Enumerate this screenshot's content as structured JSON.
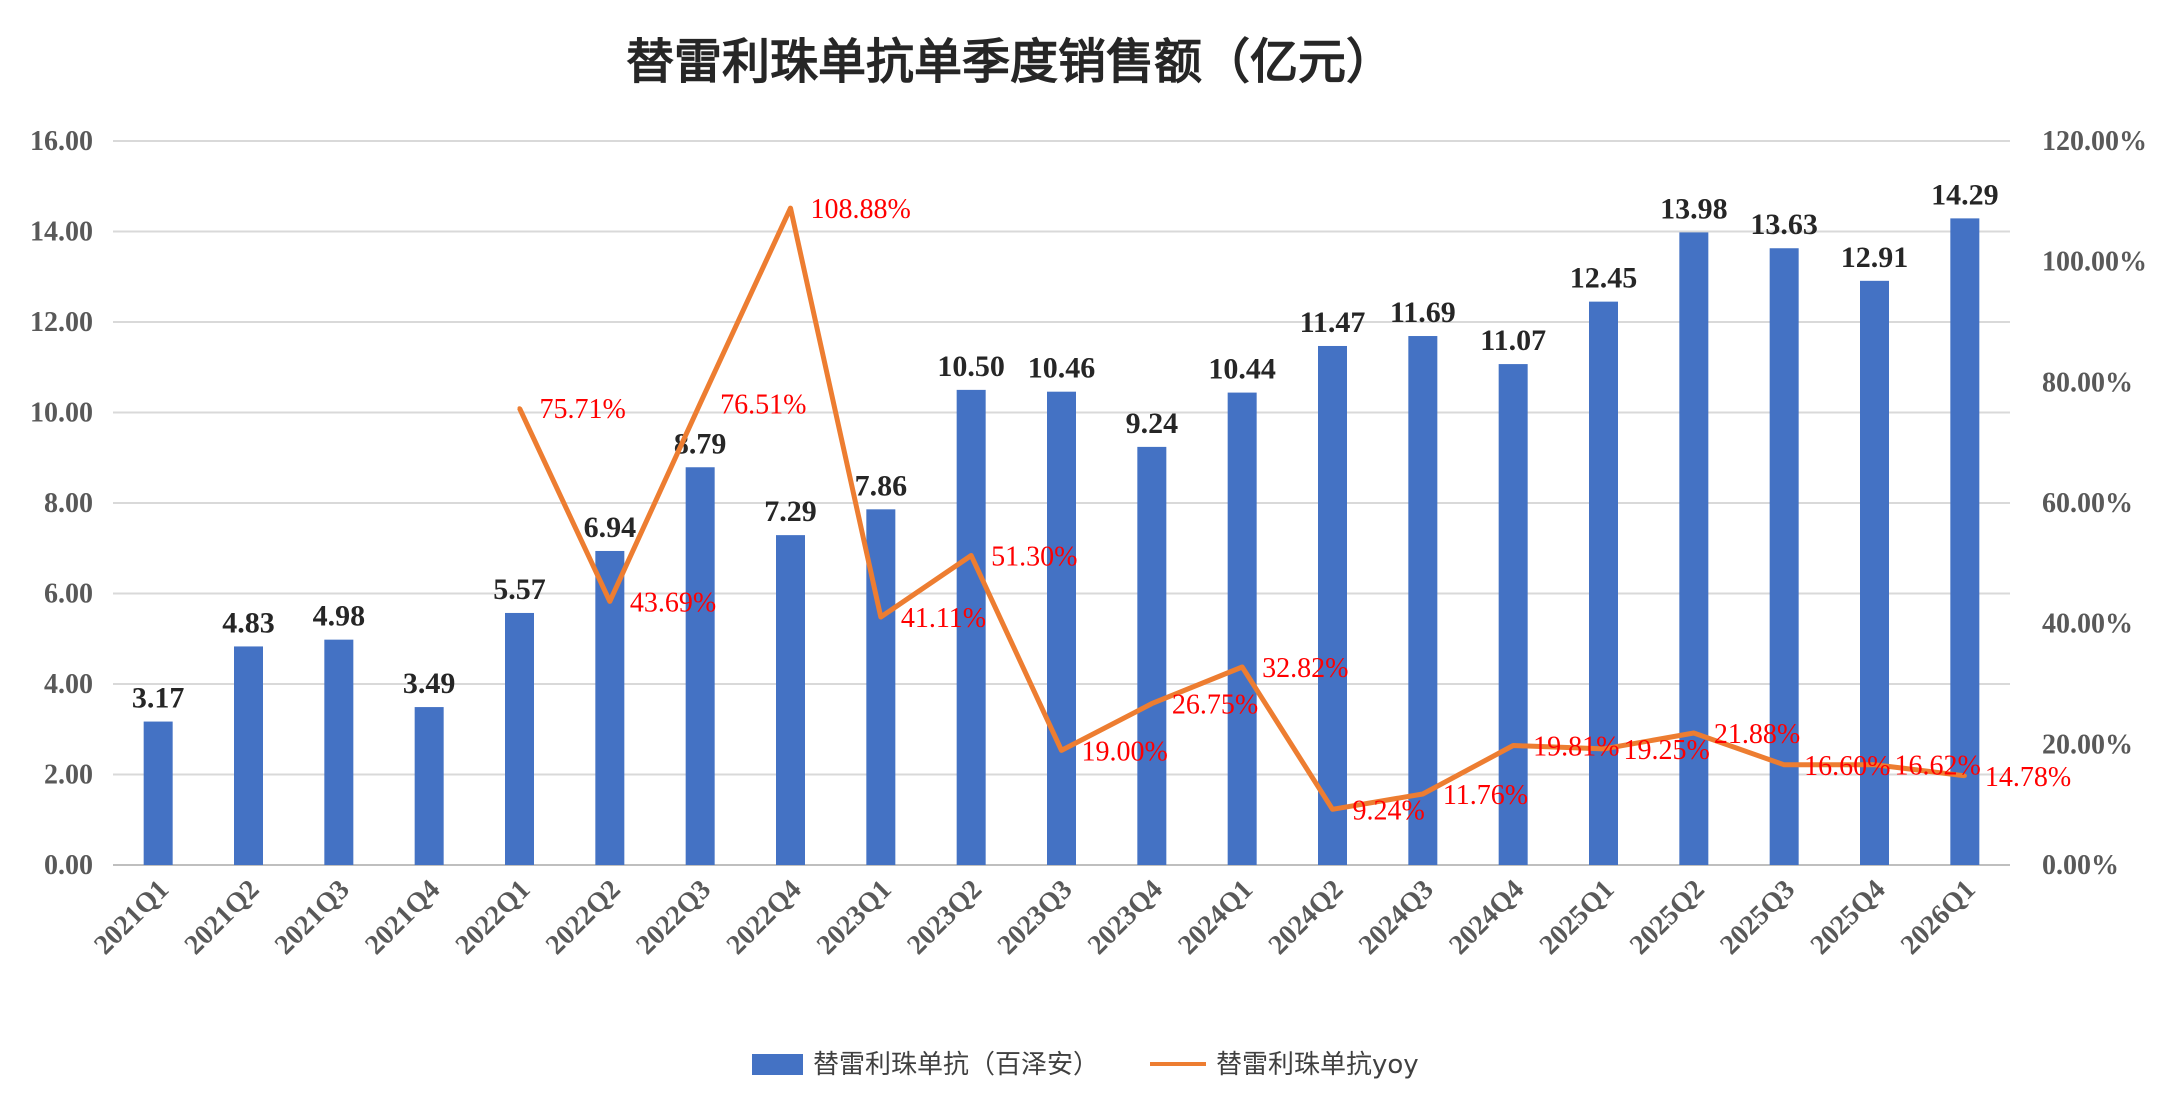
{
  "chart_data": {
    "type": "bar",
    "title": "替雷利珠单抗单季度销售额（亿元）",
    "categories": [
      "2021Q1",
      "2021Q2",
      "2021Q3",
      "2021Q4",
      "2022Q1",
      "2022Q2",
      "2022Q3",
      "2022Q4",
      "2023Q1",
      "2023Q2",
      "2023Q3",
      "2023Q4",
      "2024Q1",
      "2024Q2",
      "2024Q3",
      "2024Q4",
      "2025Q1",
      "2025Q2",
      "2025Q3",
      "2025Q4",
      "2026Q1"
    ],
    "series": [
      {
        "name": "替雷利珠单抗（百泽安）",
        "type": "bar",
        "axis": "left",
        "values": [
          3.17,
          4.83,
          4.98,
          3.49,
          5.57,
          6.94,
          8.79,
          7.29,
          7.86,
          10.5,
          10.46,
          9.24,
          10.44,
          11.47,
          11.69,
          11.07,
          12.45,
          13.98,
          13.63,
          12.91,
          14.29
        ],
        "labels": [
          "3.17",
          "4.83",
          "4.98",
          "3.49",
          "5.57",
          "6.94",
          "8.79",
          "7.29",
          "7.86",
          "10.50",
          "10.46",
          "9.24",
          "10.44",
          "11.47",
          "11.69",
          "11.07",
          "12.45",
          "13.98",
          "13.63",
          "12.91",
          "14.29"
        ]
      },
      {
        "name": "替雷利珠单抗yoy",
        "type": "line",
        "axis": "right",
        "values": [
          null,
          null,
          null,
          null,
          75.71,
          43.69,
          76.51,
          108.88,
          41.11,
          51.3,
          19.0,
          26.75,
          32.82,
          9.24,
          11.76,
          19.81,
          19.25,
          21.88,
          16.6,
          16.62,
          14.78
        ],
        "labels": [
          "",
          "",
          "",
          "",
          "75.71%",
          "43.69%",
          "76.51%",
          "108.88%",
          "41.11%",
          "51.30%",
          "19.00%",
          "26.75%",
          "32.82%",
          "9.24%",
          "11.76%",
          "19.81%",
          "19.25%",
          "21.88%",
          "16.60%",
          "16.62%",
          "14.78%"
        ]
      }
    ],
    "y_left": {
      "ylim": [
        0,
        16
      ],
      "ticks": [
        "0.00",
        "2.00",
        "4.00",
        "6.00",
        "8.00",
        "10.00",
        "12.00",
        "14.00",
        "16.00"
      ]
    },
    "y_right": {
      "ylim": [
        0,
        120
      ],
      "ticks": [
        "0.00%",
        "20.00%",
        "40.00%",
        "60.00%",
        "80.00%",
        "100.00%",
        "120.00%"
      ]
    },
    "grid": true,
    "legend_position": "bottom",
    "colors": {
      "bar": "#4472c4",
      "line": "#ed7d31",
      "line_label": "#ff0000",
      "grid": "#d9d9d9"
    }
  }
}
